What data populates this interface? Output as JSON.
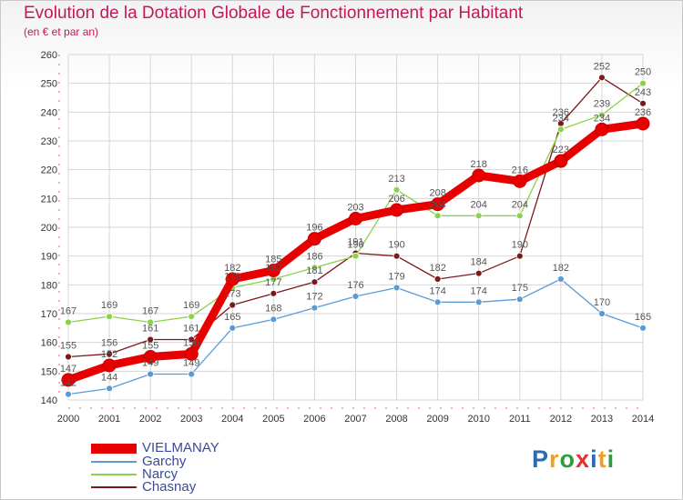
{
  "header": {
    "title": "Evolution de la Dotation Globale de Fonctionnement par Habitant",
    "subtitle": "(en € et par an)"
  },
  "logo": {
    "text": "Proxiti"
  },
  "chart_data": {
    "type": "line",
    "title": "Evolution de la Dotation Globale de Fonctionnement par Habitant",
    "subtitle": "(en € et par an)",
    "xlabel": "",
    "ylabel": "",
    "x": [
      "2000",
      "2001",
      "2002",
      "2003",
      "2004",
      "2005",
      "2006",
      "2007",
      "2008",
      "2009",
      "2010",
      "2011",
      "2012",
      "2013",
      "2014"
    ],
    "ylim": [
      140,
      260
    ],
    "yticks": [
      140,
      150,
      160,
      170,
      180,
      190,
      200,
      210,
      220,
      230,
      240,
      250,
      260
    ],
    "grid": true,
    "legend_position": "bottom-left",
    "series": [
      {
        "name": "Chasnay",
        "color": "#7b1a1a",
        "values": [
          155,
          156,
          161,
          161,
          173,
          177,
          181,
          191,
          190,
          182,
          184,
          190,
          236,
          252,
          243
        ]
      },
      {
        "name": "Narcy",
        "color": "#8bd24b",
        "values": [
          167,
          169,
          167,
          169,
          179,
          182,
          186,
          190,
          213,
          204,
          204,
          204,
          234,
          239,
          250
        ]
      },
      {
        "name": "Garchy",
        "color": "#5b9bd5",
        "values": [
          142,
          144,
          149,
          149,
          165,
          168,
          172,
          176,
          179,
          174,
          174,
          175,
          182,
          170,
          165
        ]
      },
      {
        "name": "VIELMANAY",
        "color": "#e80000",
        "values": [
          147,
          152,
          155,
          156,
          182,
          185,
          196,
          203,
          206,
          208,
          218,
          216,
          223,
          234,
          236
        ]
      }
    ],
    "legend": [
      "VIELMANAY",
      "Garchy",
      "Narcy",
      "Chasnay"
    ]
  }
}
